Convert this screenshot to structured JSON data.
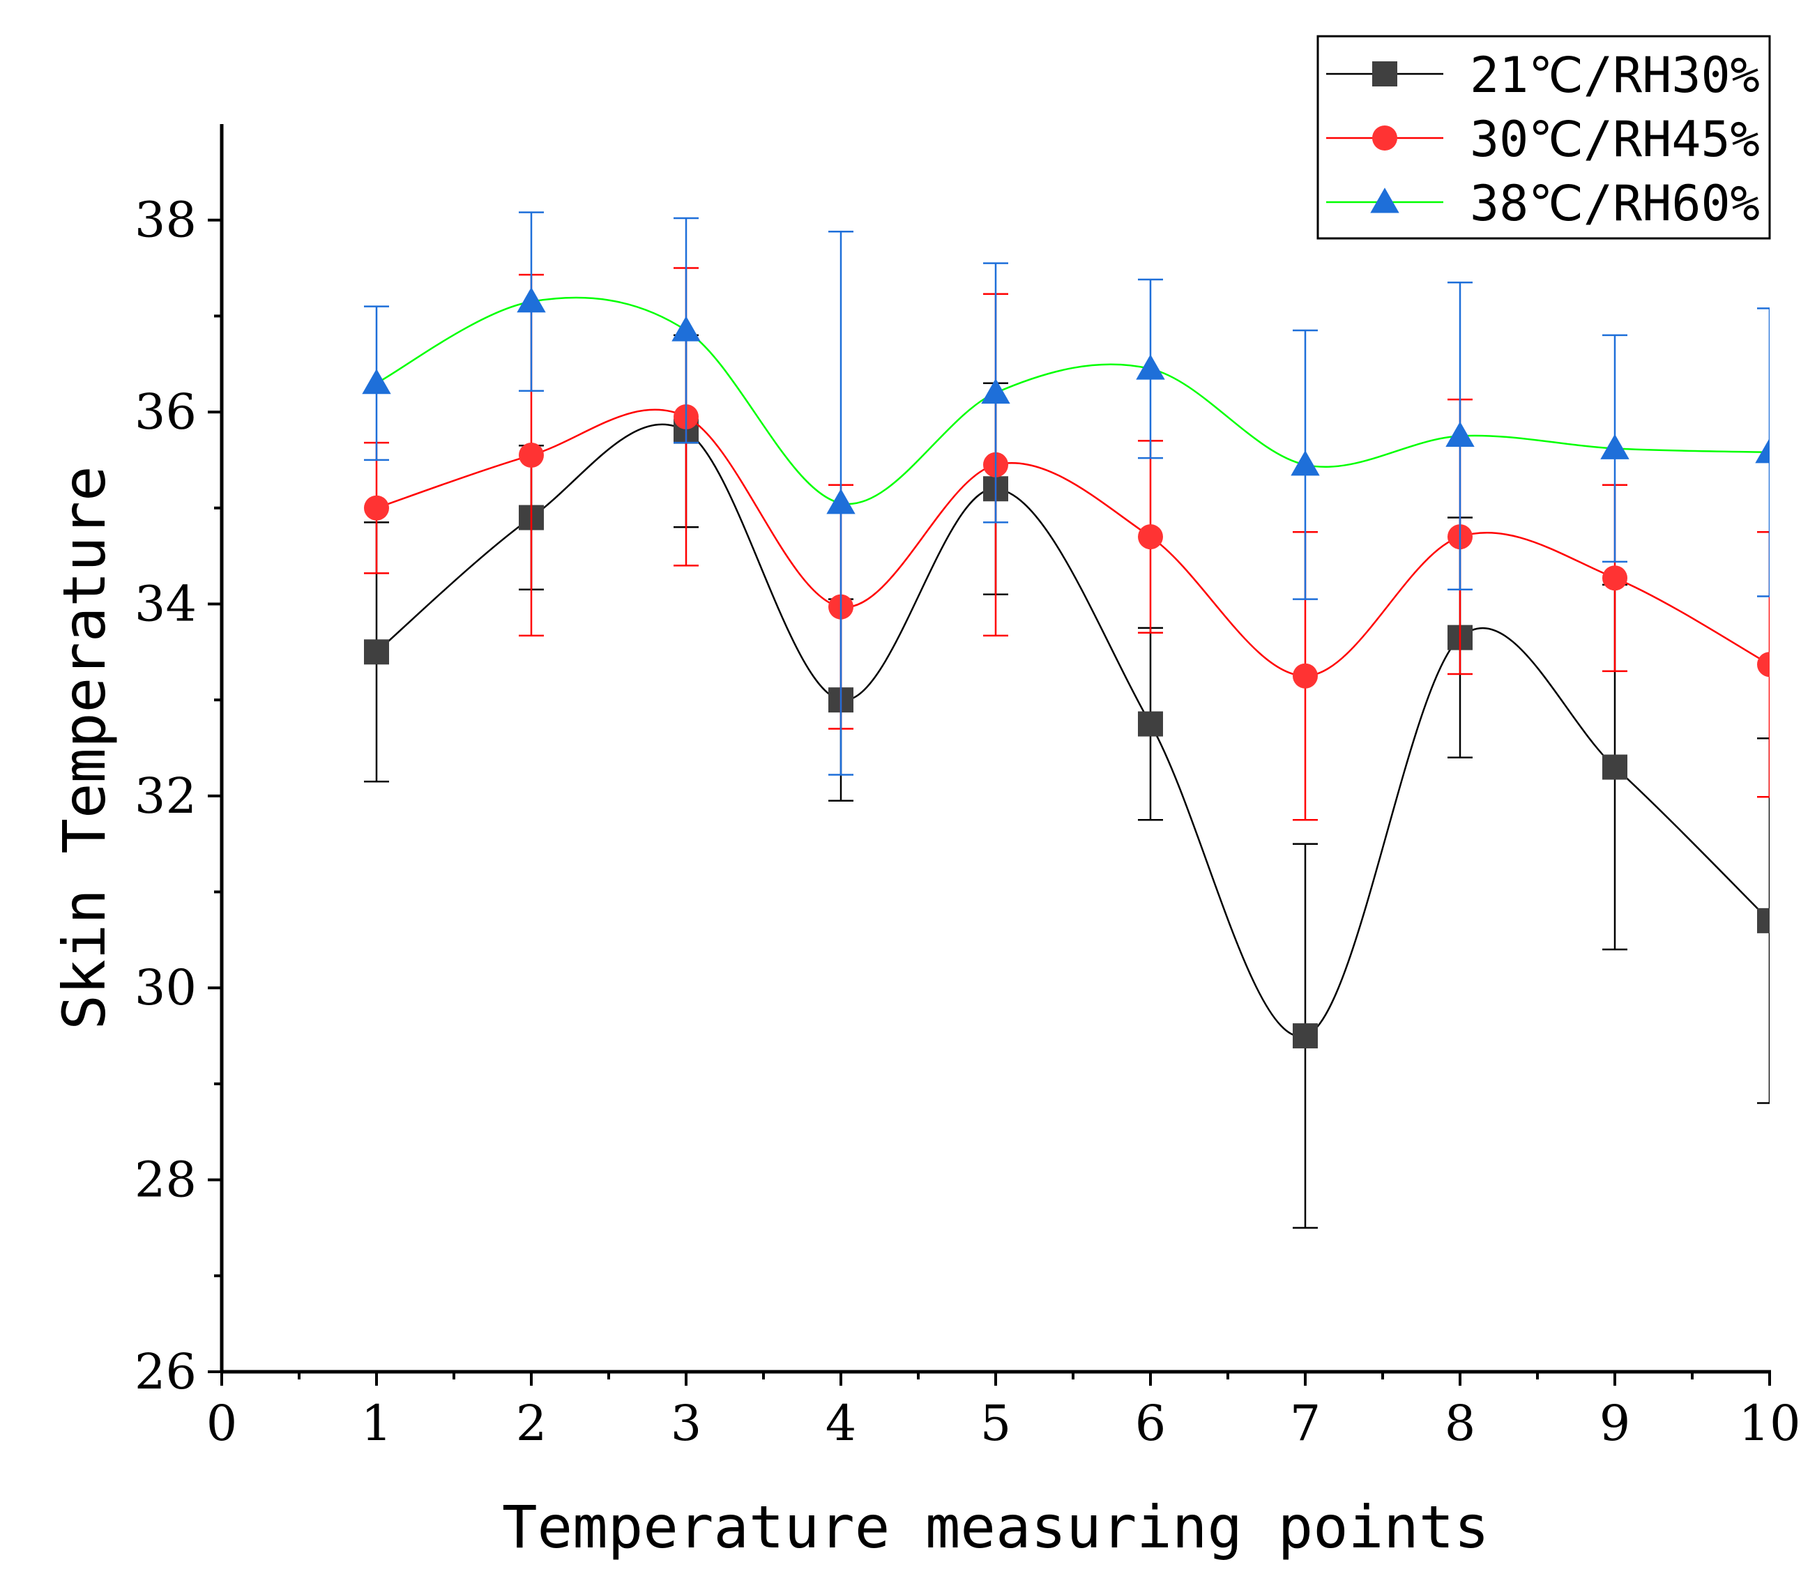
{
  "chart_data": {
    "type": "line",
    "title": "",
    "xlabel": "Temperature measuring points",
    "ylabel": "Skin Temperature",
    "xlim": [
      0,
      10
    ],
    "ylim": [
      26,
      39
    ],
    "xticks": [
      0,
      1,
      2,
      3,
      4,
      5,
      6,
      7,
      8,
      9,
      10
    ],
    "yticks": [
      26,
      28,
      30,
      32,
      34,
      36,
      38
    ],
    "legend_position": "top-right",
    "series": [
      {
        "name": "21℃/RH30%",
        "color": "#000000",
        "marker_color": "#404040",
        "marker": "square",
        "x": [
          1,
          2,
          3,
          4,
          5,
          6,
          7,
          8,
          9,
          10
        ],
        "values": [
          33.5,
          34.9,
          35.8,
          33.0,
          35.2,
          32.75,
          29.5,
          33.65,
          32.3,
          30.7
        ],
        "errors": [
          1.35,
          0.75,
          1.0,
          1.05,
          1.1,
          1.0,
          2.0,
          1.25,
          1.9,
          1.9
        ]
      },
      {
        "name": "30℃/RH45%",
        "color": "#ff0000",
        "marker_color": "#ff3333",
        "marker": "circle",
        "x": [
          1,
          2,
          3,
          4,
          5,
          6,
          7,
          8,
          9,
          10
        ],
        "values": [
          35.0,
          35.55,
          35.95,
          33.97,
          35.45,
          34.7,
          33.25,
          34.7,
          34.27,
          33.37
        ],
        "errors": [
          0.68,
          1.88,
          1.55,
          1.27,
          1.78,
          1.0,
          1.5,
          1.43,
          0.97,
          1.38
        ]
      },
      {
        "name": "38℃/RH60%",
        "color": "#00ff00",
        "marker_color": "#1e6fd9",
        "error_color": "#1e6fd9",
        "marker": "triangle",
        "x": [
          1,
          2,
          3,
          4,
          5,
          6,
          7,
          8,
          9,
          10
        ],
        "values": [
          36.3,
          37.15,
          36.85,
          35.05,
          36.2,
          36.45,
          35.45,
          35.75,
          35.62,
          35.58
        ],
        "errors": [
          0.8,
          0.93,
          1.17,
          2.83,
          1.35,
          0.93,
          1.4,
          1.6,
          1.18,
          1.5
        ]
      }
    ]
  }
}
